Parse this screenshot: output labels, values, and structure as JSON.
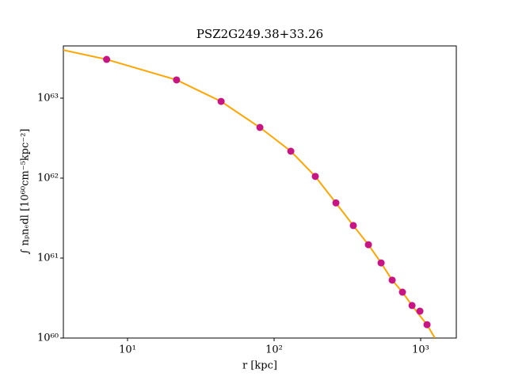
{
  "chart_data": {
    "type": "scatter",
    "title": "PSZ2G249.38+33.26",
    "x_label": "r [kpc]",
    "y_label": "∫ nₚnₑdl [10⁶⁰cm⁻⁵kpc⁻²]",
    "xscale": "log",
    "yscale": "log",
    "xlim": [
      3.65,
      1750
    ],
    "ylim": [
      1e+60,
      4.5e+63
    ],
    "xticks": [
      {
        "value": 10,
        "label": "10¹"
      },
      {
        "value": 100,
        "label": "10²"
      },
      {
        "value": 1000,
        "label": "10³"
      }
    ],
    "yticks": [
      {
        "value": 1e+60,
        "label": "10⁶⁰"
      },
      {
        "value": 1e+61,
        "label": "10⁶¹"
      },
      {
        "value": 1e+62,
        "label": "10⁶²"
      },
      {
        "value": 1e+63,
        "label": "10⁶³"
      }
    ],
    "series": [
      {
        "type": "line",
        "color": "#ffa500",
        "x": [
          3.65,
          7.2,
          21.6,
          43.5,
          80,
          130,
          191,
          264,
          347,
          440,
          537,
          639,
          751,
          873,
          988,
          1105,
          1250
        ],
        "values": [
          4e+63,
          3.05e+63,
          1.69e+63,
          9.1e+62,
          4.3e+62,
          2.17e+62,
          1.05e+62,
          4.9e+61,
          2.55e+61,
          1.47e+61,
          8.7e+60,
          5.3e+60,
          3.75e+60,
          2.55e+60,
          1.9e+60,
          1.47e+60,
          1e+60
        ]
      },
      {
        "type": "scatter",
        "color": "#c71585",
        "x": [
          7.2,
          21.6,
          43.5,
          80,
          130,
          191,
          264,
          347,
          440,
          537,
          639,
          751,
          873,
          988,
          1105
        ],
        "values": [
          3.05e+63,
          1.69e+63,
          9.1e+62,
          4.3e+62,
          2.17e+62,
          1.05e+62,
          4.9e+61,
          2.55e+61,
          1.47e+61,
          8.7e+60,
          5.3e+60,
          3.75e+60,
          2.55e+60,
          2.17e+60,
          1.47e+60
        ]
      }
    ]
  }
}
